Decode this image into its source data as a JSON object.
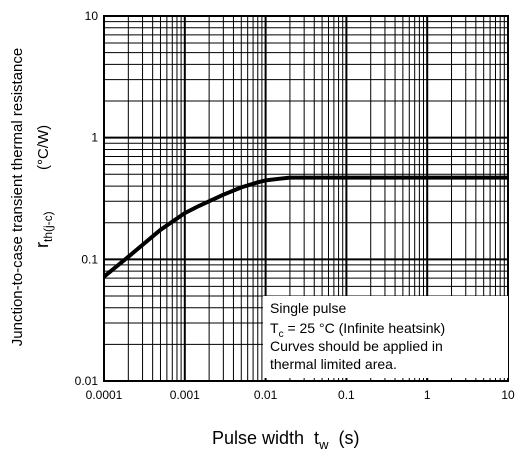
{
  "chart_data": {
    "type": "line",
    "x_scale": "log",
    "y_scale": "log",
    "xlim": [
      0.0001,
      10
    ],
    "ylim": [
      0.01,
      10
    ],
    "grid": true,
    "x_ticks": [
      "0.0001",
      "0.001",
      "0.01",
      "0.1",
      "1",
      "10"
    ],
    "y_ticks": [
      "0.01",
      "0.1",
      "1",
      "10"
    ],
    "xlabel": {
      "main": "Pulse width  t",
      "sub": "w",
      "unit": "  (s)"
    },
    "ylabel": {
      "line1": "Junction-to-case transient thermal resistance",
      "r": "r",
      "sub": "th(j-c)",
      "unit": "(°C/W)"
    },
    "annotation": {
      "line1": "Single pulse",
      "line2_T": "T",
      "line2_sub": "c",
      "line2_rest": " = 25 °C (Infinite heatsink)",
      "line3": "Curves should be applied in",
      "line4": "thermal limited area."
    },
    "series": [
      {
        "x": [
          0.0001,
          0.0002,
          0.0005,
          0.001,
          0.0015,
          0.003,
          0.005,
          0.008,
          0.01,
          0.015,
          0.02,
          0.05,
          0.1,
          1,
          10
        ],
        "y": [
          0.072,
          0.105,
          0.175,
          0.24,
          0.275,
          0.34,
          0.39,
          0.43,
          0.445,
          0.46,
          0.47,
          0.47,
          0.47,
          0.47,
          0.47
        ]
      }
    ]
  }
}
